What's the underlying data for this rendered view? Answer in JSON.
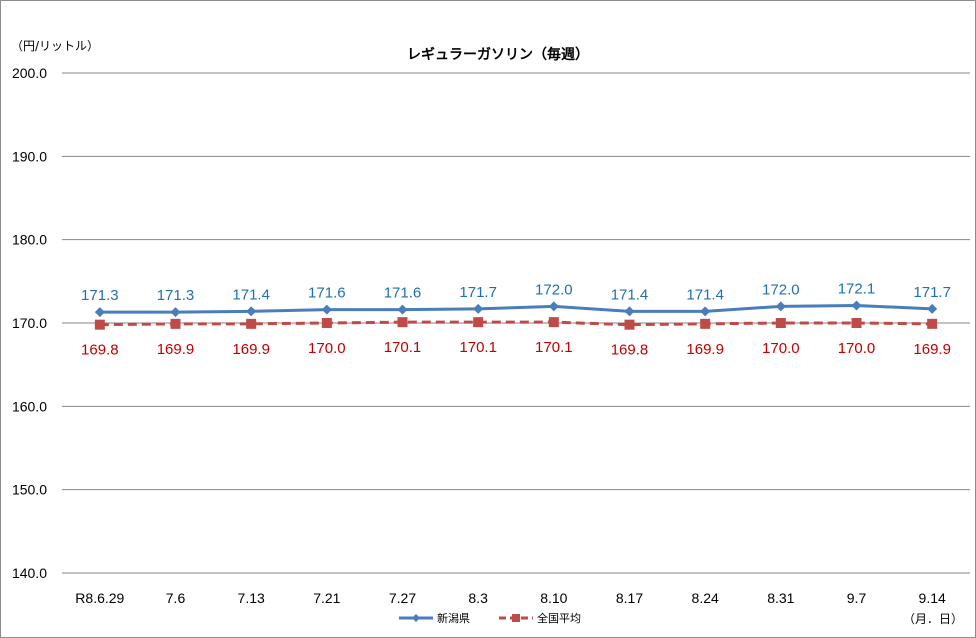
{
  "chart_data": {
    "type": "line",
    "title": "レギュラーガソリン（毎週）",
    "y_unit_label": "（円/リットル）",
    "x_unit_label": "（月．日）",
    "ylim": [
      140,
      200
    ],
    "yticks": [
      "140.0",
      "150.0",
      "160.0",
      "170.0",
      "180.0",
      "190.0",
      "200.0"
    ],
    "ytick_values": [
      140,
      150,
      160,
      170,
      180,
      190,
      200
    ],
    "grid": true,
    "legend_position": "bottom",
    "categories": [
      "R8.6.29",
      "7.6",
      "7.13",
      "7.21",
      "7.27",
      "8.3",
      "8.10",
      "8.17",
      "8.24",
      "8.31",
      "9.7",
      "9.14"
    ],
    "series": [
      {
        "name": "新潟県",
        "color": "#4a7ebb",
        "label_color": "#1f6fb5",
        "marker": "diamond",
        "line_style": "solid",
        "values": [
          171.3,
          171.3,
          171.4,
          171.6,
          171.6,
          171.7,
          172.0,
          171.4,
          171.4,
          172.0,
          172.1,
          171.7
        ],
        "labels": [
          "171.3",
          "171.3",
          "171.4",
          "171.6",
          "171.6",
          "171.7",
          "172.0",
          "171.4",
          "171.4",
          "172.0",
          "172.1",
          "171.7"
        ]
      },
      {
        "name": "全国平均",
        "color": "#be4b48",
        "label_color": "#c00000",
        "marker": "square",
        "line_style": "dashed",
        "values": [
          169.8,
          169.9,
          169.9,
          170.0,
          170.1,
          170.1,
          170.1,
          169.8,
          169.9,
          170.0,
          170.0,
          169.9
        ],
        "labels": [
          "169.8",
          "169.9",
          "169.9",
          "170.0",
          "170.1",
          "170.1",
          "170.1",
          "169.8",
          "169.9",
          "170.0",
          "170.0",
          "169.9"
        ]
      }
    ]
  }
}
